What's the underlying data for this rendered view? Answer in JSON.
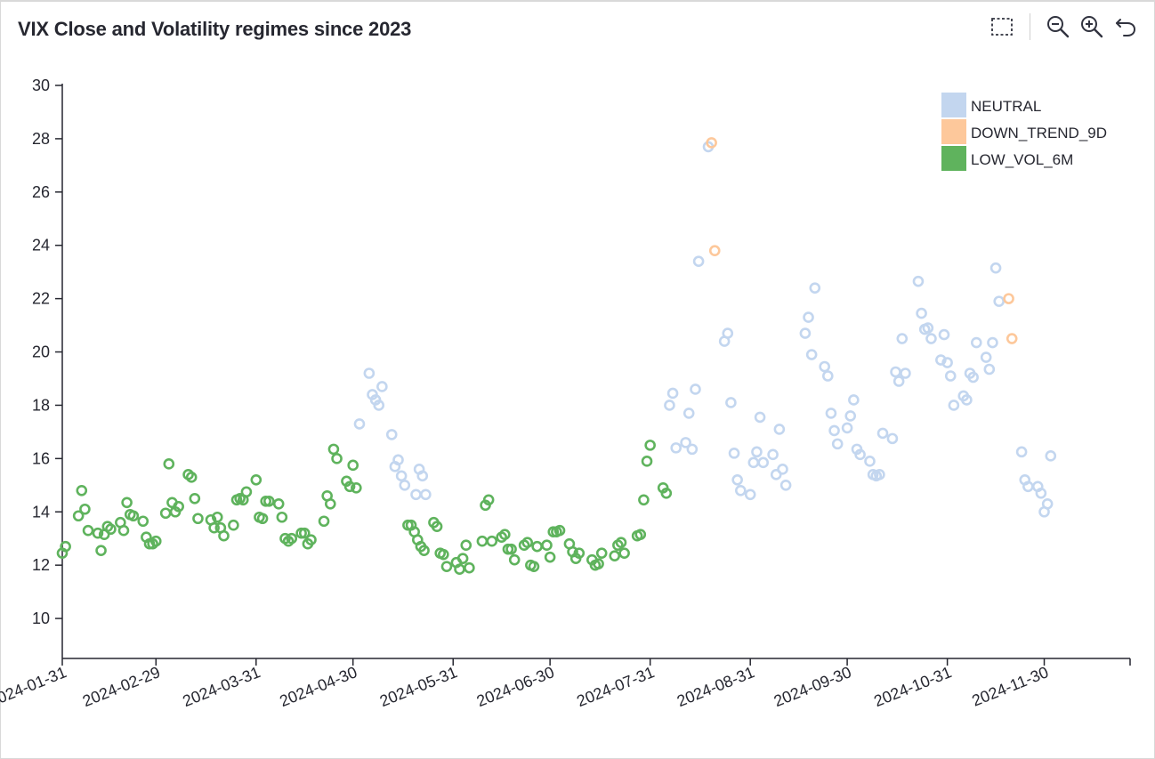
{
  "header": {
    "title": "VIX Close and Volatility regimes since 2023"
  },
  "toolbar": {
    "buttons": [
      {
        "name": "box-select-icon"
      },
      {
        "name": "zoom-out-icon"
      },
      {
        "name": "zoom-in-icon"
      },
      {
        "name": "reset-icon"
      }
    ]
  },
  "colors": {
    "NEUTRAL": "#c3d6ef",
    "DOWN_TREND_9D": "#fdc89b",
    "LOW_VOL_6M": "#5fb35d",
    "axis": "#262730"
  },
  "chart_data": {
    "type": "scatter",
    "title": "VIX Close and Volatility regimes since 2023",
    "xlabel": "",
    "ylabel": "",
    "ylim": [
      8.5,
      30
    ],
    "yticks": [
      10,
      12,
      14,
      16,
      18,
      20,
      22,
      24,
      26,
      28,
      30
    ],
    "x_tick_labels": [
      "2024-01-31",
      "2024-02-29",
      "2024-03-31",
      "2024-04-30",
      "2024-05-31",
      "2024-06-30",
      "2024-07-31",
      "2024-08-31",
      "2024-09-30",
      "2024-10-31",
      "2024-11-30"
    ],
    "legend": {
      "position": "top-right",
      "entries": [
        "NEUTRAL",
        "DOWN_TREND_9D",
        "LOW_VOL_6M"
      ]
    },
    "series": [
      {
        "name": "LOW_VOL_6M",
        "points": [
          [
            0,
            12.45
          ],
          [
            1,
            12.7
          ],
          [
            5,
            13.85
          ],
          [
            6,
            14.8
          ],
          [
            7,
            14.1
          ],
          [
            8,
            13.3
          ],
          [
            11,
            13.2
          ],
          [
            12,
            12.55
          ],
          [
            13,
            13.15
          ],
          [
            14,
            13.45
          ],
          [
            15,
            13.35
          ],
          [
            18,
            13.6
          ],
          [
            19,
            13.3
          ],
          [
            20,
            14.35
          ],
          [
            21,
            13.9
          ],
          [
            22,
            13.85
          ],
          [
            25,
            13.65
          ],
          [
            26,
            13.05
          ],
          [
            27,
            12.8
          ],
          [
            28,
            12.8
          ],
          [
            29,
            12.9
          ],
          [
            32,
            13.95
          ],
          [
            33,
            15.8
          ],
          [
            34,
            14.35
          ],
          [
            35,
            14.0
          ],
          [
            36,
            14.2
          ],
          [
            39,
            15.4
          ],
          [
            40,
            15.3
          ],
          [
            41,
            14.5
          ],
          [
            42,
            13.75
          ],
          [
            46,
            13.7
          ],
          [
            47,
            13.4
          ],
          [
            48,
            13.8
          ],
          [
            49,
            13.4
          ],
          [
            50,
            13.1
          ],
          [
            53,
            13.5
          ],
          [
            54,
            14.45
          ],
          [
            55,
            14.5
          ],
          [
            56,
            14.45
          ],
          [
            57,
            14.75
          ],
          [
            60,
            15.2
          ],
          [
            61,
            13.8
          ],
          [
            62,
            13.75
          ],
          [
            63,
            14.4
          ],
          [
            64,
            14.4
          ],
          [
            67,
            14.3
          ],
          [
            68,
            13.8
          ],
          [
            69,
            13.0
          ],
          [
            70,
            12.9
          ],
          [
            71,
            13.0
          ],
          [
            74,
            13.2
          ],
          [
            75,
            13.2
          ],
          [
            76,
            12.8
          ],
          [
            77,
            12.95
          ],
          [
            81,
            13.65
          ],
          [
            82,
            14.6
          ],
          [
            83,
            14.3
          ],
          [
            84,
            16.35
          ],
          [
            85,
            16.0
          ],
          [
            88,
            15.15
          ],
          [
            89,
            14.95
          ],
          [
            90,
            15.75
          ],
          [
            91,
            14.9
          ],
          [
            107,
            13.5
          ],
          [
            108,
            13.5
          ],
          [
            109,
            13.25
          ],
          [
            110,
            12.95
          ],
          [
            111,
            12.7
          ],
          [
            112,
            12.55
          ],
          [
            115,
            13.6
          ],
          [
            116,
            13.45
          ],
          [
            117,
            12.45
          ],
          [
            118,
            12.4
          ],
          [
            119,
            11.95
          ],
          [
            122,
            12.1
          ],
          [
            123,
            11.85
          ],
          [
            124,
            12.25
          ],
          [
            125,
            12.75
          ],
          [
            126,
            11.9
          ],
          [
            130,
            12.9
          ],
          [
            131,
            14.25
          ],
          [
            132,
            14.45
          ],
          [
            133,
            12.9
          ],
          [
            136,
            13.05
          ],
          [
            137,
            13.15
          ],
          [
            138,
            12.6
          ],
          [
            139,
            12.6
          ],
          [
            140,
            12.2
          ],
          [
            143,
            12.75
          ],
          [
            144,
            12.85
          ],
          [
            145,
            12.0
          ],
          [
            146,
            11.95
          ],
          [
            147,
            12.7
          ],
          [
            150,
            12.75
          ],
          [
            151,
            12.3
          ],
          [
            152,
            13.25
          ],
          [
            153,
            13.25
          ],
          [
            154,
            13.3
          ],
          [
            157,
            12.8
          ],
          [
            158,
            12.5
          ],
          [
            159,
            12.25
          ],
          [
            160,
            12.45
          ],
          [
            164,
            12.2
          ],
          [
            165,
            12.0
          ],
          [
            166,
            12.05
          ],
          [
            167,
            12.45
          ],
          [
            171,
            12.35
          ],
          [
            172,
            12.75
          ],
          [
            173,
            12.85
          ],
          [
            174,
            12.45
          ],
          [
            178,
            13.1
          ],
          [
            179,
            13.15
          ],
          [
            180,
            14.45
          ],
          [
            181,
            15.9
          ],
          [
            182,
            16.5
          ],
          [
            186,
            14.9
          ],
          [
            187,
            14.7
          ]
        ]
      },
      {
        "name": "NEUTRAL",
        "points": [
          [
            92,
            17.3
          ],
          [
            95,
            19.2
          ],
          [
            96,
            18.4
          ],
          [
            97,
            18.2
          ],
          [
            98,
            18.0
          ],
          [
            99,
            18.7
          ],
          [
            102,
            16.9
          ],
          [
            103,
            15.7
          ],
          [
            104,
            15.95
          ],
          [
            105,
            15.35
          ],
          [
            106,
            15.0
          ],
          [
            109.5,
            14.65
          ],
          [
            110.5,
            15.6
          ],
          [
            111.5,
            15.35
          ],
          [
            112.5,
            14.65
          ],
          [
            188,
            18.0
          ],
          [
            189,
            18.45
          ],
          [
            190,
            16.4
          ],
          [
            193,
            16.6
          ],
          [
            194,
            17.7
          ],
          [
            195,
            16.35
          ],
          [
            196,
            18.6
          ],
          [
            197,
            23.4
          ],
          [
            200,
            27.7
          ],
          [
            205,
            20.4
          ],
          [
            206,
            20.7
          ],
          [
            207,
            18.1
          ],
          [
            208,
            16.2
          ],
          [
            209,
            15.2
          ],
          [
            210,
            14.8
          ],
          [
            213,
            14.65
          ],
          [
            214,
            15.85
          ],
          [
            215,
            16.25
          ],
          [
            216,
            17.55
          ],
          [
            217,
            15.85
          ],
          [
            220,
            16.15
          ],
          [
            221,
            15.4
          ],
          [
            222,
            17.1
          ],
          [
            223,
            15.6
          ],
          [
            224,
            15.0
          ],
          [
            230,
            20.7
          ],
          [
            231,
            21.3
          ],
          [
            232,
            19.9
          ],
          [
            233,
            22.4
          ],
          [
            236,
            19.45
          ],
          [
            237,
            19.1
          ],
          [
            238,
            17.7
          ],
          [
            239,
            17.05
          ],
          [
            240,
            16.55
          ],
          [
            243,
            17.15
          ],
          [
            244,
            17.6
          ],
          [
            245,
            18.2
          ],
          [
            246,
            16.35
          ],
          [
            247,
            16.15
          ],
          [
            250,
            15.9
          ],
          [
            251,
            15.4
          ],
          [
            252,
            15.35
          ],
          [
            253,
            15.4
          ],
          [
            254,
            16.95
          ],
          [
            257,
            16.75
          ],
          [
            258,
            19.25
          ],
          [
            259,
            18.9
          ],
          [
            260,
            20.5
          ],
          [
            261,
            19.2
          ],
          [
            265,
            22.65
          ],
          [
            266,
            21.45
          ],
          [
            267,
            20.85
          ],
          [
            268,
            20.9
          ],
          [
            269,
            20.5
          ],
          [
            272,
            19.7
          ],
          [
            273,
            20.65
          ],
          [
            274,
            19.6
          ],
          [
            275,
            19.1
          ],
          [
            276,
            18.0
          ],
          [
            279,
            18.35
          ],
          [
            280,
            18.2
          ],
          [
            281,
            19.2
          ],
          [
            282,
            19.05
          ],
          [
            283,
            20.35
          ],
          [
            286,
            19.8
          ],
          [
            287,
            19.35
          ],
          [
            288,
            20.35
          ],
          [
            289,
            23.15
          ],
          [
            290,
            21.9
          ],
          [
            297,
            16.25
          ],
          [
            298,
            15.2
          ],
          [
            299,
            14.95
          ],
          [
            302,
            14.95
          ],
          [
            303,
            14.7
          ],
          [
            304,
            14.0
          ],
          [
            305,
            14.3
          ],
          [
            306,
            16.1
          ]
        ]
      },
      {
        "name": "DOWN_TREND_9D",
        "points": [
          [
            201,
            27.85
          ],
          [
            202,
            23.8
          ],
          [
            293,
            22.0
          ],
          [
            294,
            20.5
          ]
        ]
      }
    ],
    "x_day_ticks": [
      0,
      29,
      60,
      90,
      121,
      151,
      182,
      213,
      243,
      274,
      304
    ]
  }
}
